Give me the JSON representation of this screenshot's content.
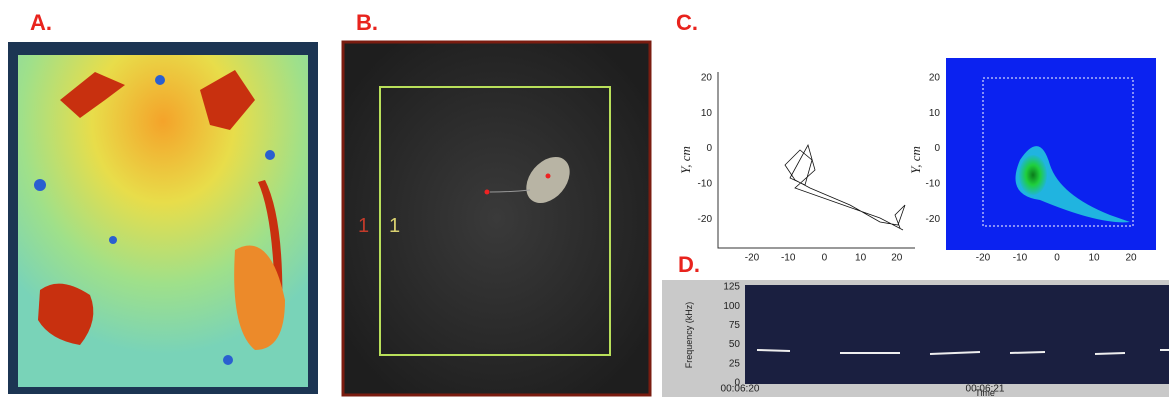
{
  "panels": {
    "a": {
      "label": "A."
    },
    "b": {
      "label": "B.",
      "zone_labels": [
        "1",
        "1"
      ]
    },
    "c": {
      "label": "C.",
      "plots": [
        {
          "xticks": [
            -20,
            -10,
            0,
            10,
            20
          ],
          "yticks": [
            20,
            10,
            0,
            -10,
            -20
          ],
          "ylabel": "Y, cm"
        },
        {
          "xticks": [
            -20,
            -10,
            0,
            10,
            20
          ],
          "yticks": [
            20,
            10,
            0,
            -10,
            -20
          ],
          "ylabel": "Y, cm"
        }
      ]
    },
    "d": {
      "label": "D.",
      "yticks": [
        125,
        100,
        75,
        50,
        25,
        0
      ],
      "ylabel": "Frequency (kHz)",
      "xticks": [
        "00:06:20",
        "00:06:21"
      ],
      "xlabel": "Time"
    }
  }
}
